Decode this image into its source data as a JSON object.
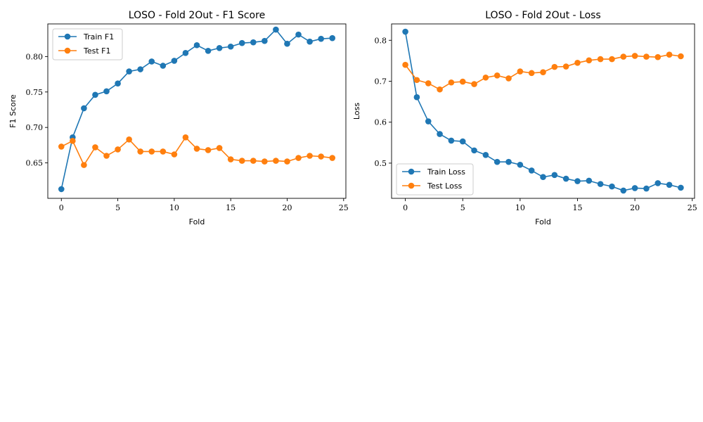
{
  "chart_data": [
    {
      "type": "line",
      "title": "LOSO - Fold 2Out - F1 Score",
      "xlabel": "Fold",
      "ylabel": "F1 Score",
      "xlim": [
        -1.2,
        25.2
      ],
      "ylim": [
        0.6,
        0.846
      ],
      "xticks": [
        0,
        5,
        10,
        15,
        20,
        25
      ],
      "yticks": [
        0.65,
        0.7,
        0.75,
        0.8
      ],
      "ytick_labels": [
        "0.65",
        "0.70",
        "0.75",
        "0.80"
      ],
      "grid": false,
      "legend_position": "upper-left",
      "x": [
        0,
        1,
        2,
        3,
        4,
        5,
        6,
        7,
        8,
        9,
        10,
        11,
        12,
        13,
        14,
        15,
        16,
        17,
        18,
        19,
        20,
        21,
        22,
        23,
        24
      ],
      "series": [
        {
          "name": "Train F1",
          "color": "#1f77b4",
          "values": [
            0.613,
            0.686,
            0.727,
            0.746,
            0.751,
            0.762,
            0.779,
            0.782,
            0.793,
            0.787,
            0.794,
            0.805,
            0.816,
            0.808,
            0.812,
            0.814,
            0.819,
            0.82,
            0.822,
            0.838,
            0.818,
            0.831,
            0.821,
            0.825,
            0.826
          ]
        },
        {
          "name": "Test F1",
          "color": "#ff7f0e",
          "values": [
            0.673,
            0.681,
            0.647,
            0.672,
            0.66,
            0.669,
            0.683,
            0.666,
            0.666,
            0.666,
            0.662,
            0.686,
            0.67,
            0.668,
            0.671,
            0.655,
            0.653,
            0.653,
            0.652,
            0.653,
            0.652,
            0.657,
            0.66,
            0.659,
            0.657
          ]
        }
      ]
    },
    {
      "type": "line",
      "title": "LOSO - Fold 2Out - Loss",
      "xlabel": "Fold",
      "ylabel": "Loss",
      "xlim": [
        -1.2,
        25.2
      ],
      "ylim": [
        0.414,
        0.84
      ],
      "xticks": [
        0,
        5,
        10,
        15,
        20,
        25
      ],
      "yticks": [
        0.5,
        0.6,
        0.7,
        0.8
      ],
      "ytick_labels": [
        "0.5",
        "0.6",
        "0.7",
        "0.8"
      ],
      "grid": false,
      "legend_position": "lower-left",
      "x": [
        0,
        1,
        2,
        3,
        4,
        5,
        6,
        7,
        8,
        9,
        10,
        11,
        12,
        13,
        14,
        15,
        16,
        17,
        18,
        19,
        20,
        21,
        22,
        23,
        24
      ],
      "series": [
        {
          "name": "Train Loss",
          "color": "#1f77b4",
          "values": [
            0.821,
            0.661,
            0.602,
            0.571,
            0.555,
            0.553,
            0.531,
            0.52,
            0.503,
            0.503,
            0.496,
            0.482,
            0.466,
            0.471,
            0.462,
            0.456,
            0.457,
            0.449,
            0.443,
            0.433,
            0.439,
            0.438,
            0.451,
            0.447,
            0.44
          ]
        },
        {
          "name": "Test Loss",
          "color": "#ff7f0e",
          "values": [
            0.74,
            0.703,
            0.695,
            0.68,
            0.697,
            0.699,
            0.693,
            0.709,
            0.714,
            0.707,
            0.724,
            0.72,
            0.722,
            0.735,
            0.736,
            0.745,
            0.751,
            0.754,
            0.754,
            0.76,
            0.762,
            0.76,
            0.759,
            0.765,
            0.761
          ]
        }
      ]
    }
  ]
}
